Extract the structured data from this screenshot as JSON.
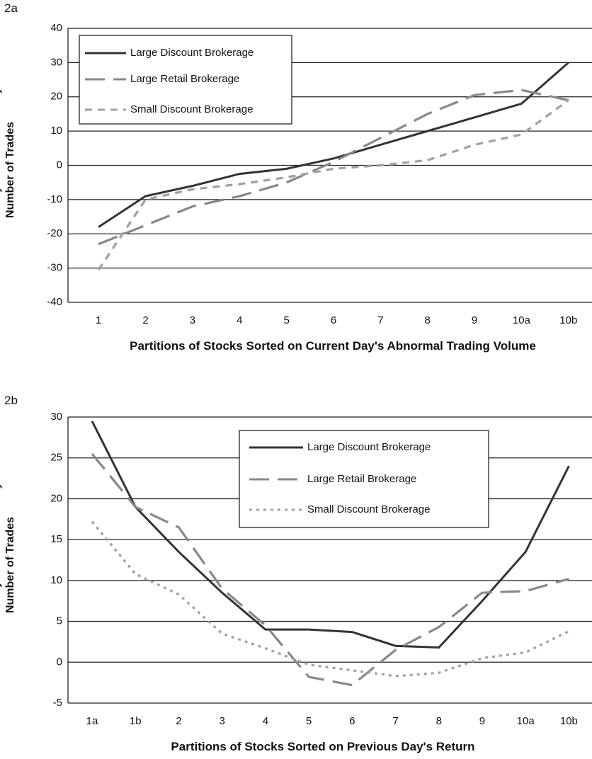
{
  "chart_data": [
    {
      "type": "line",
      "title": "2a",
      "categories": [
        "1",
        "2",
        "3",
        "4",
        "5",
        "6",
        "7",
        "8",
        "9",
        "10a",
        "10b"
      ],
      "series": [
        {
          "name": "Large Discount Brokerage",
          "color": "#333333",
          "dash": "none",
          "values": [
            -18,
            -9,
            -6,
            -2.5,
            -1,
            2,
            6,
            10,
            14,
            18,
            30
          ]
        },
        {
          "name": "Large Retail Brokerage",
          "color": "#888888",
          "dash": "28 12",
          "values": [
            -23,
            -17.5,
            -12,
            -9,
            -5,
            1,
            8,
            15,
            20.5,
            22,
            19
          ]
        },
        {
          "name": "Small Discount Brokerage",
          "color": "#a0a0a0",
          "dash": "10 8",
          "values": [
            -30.5,
            -10,
            -7,
            -5.5,
            -3.5,
            -1,
            0,
            1.5,
            6,
            9,
            19
          ]
        }
      ],
      "ylim": [
        -40,
        40
      ],
      "yticks": [
        -40,
        -30,
        -20,
        -10,
        0,
        10,
        20,
        30,
        40
      ],
      "grid": true,
      "x_label": "Partitions of Stocks Sorted on Current Day's Abnormal Trading Volume",
      "y_label": "Percent Buy-Sell Imbalance by Number of Trades",
      "legend": "upper left"
    },
    {
      "type": "line",
      "title": "2b",
      "categories": [
        "1a",
        "1b",
        "2",
        "3",
        "4",
        "5",
        "6",
        "7",
        "8",
        "9",
        "10a",
        "10b"
      ],
      "series": [
        {
          "name": "Large Discount Brokerage",
          "color": "#333333",
          "dash": "none",
          "values": [
            29.5,
            19,
            13.5,
            8.5,
            4,
            4,
            3.7,
            2,
            1.8,
            7.5,
            13.5,
            24
          ]
        },
        {
          "name": "Large Retail Brokerage",
          "color": "#888888",
          "dash": "28 12",
          "values": [
            25.5,
            19,
            16.5,
            9,
            4.5,
            -1.8,
            -2.8,
            1.5,
            4.3,
            8.5,
            8.7,
            10.2
          ]
        },
        {
          "name": "Small Discount Brokerage",
          "color": "#a0a0a0",
          "dash": "4 6",
          "values": [
            17.2,
            10.8,
            8.3,
            3.5,
            1.7,
            -0.3,
            -1,
            -1.7,
            -1.3,
            0.5,
            1.2,
            3.8
          ]
        }
      ],
      "ylim": [
        -5,
        30
      ],
      "yticks": [
        -5,
        0,
        5,
        10,
        15,
        20,
        25,
        30
      ],
      "grid": true,
      "x_label": "Partitions of Stocks Sorted on Previous Day's Return",
      "y_label": "Percent Buy-Sell Imbalance by Number of Trades",
      "legend": "upper center"
    }
  ]
}
